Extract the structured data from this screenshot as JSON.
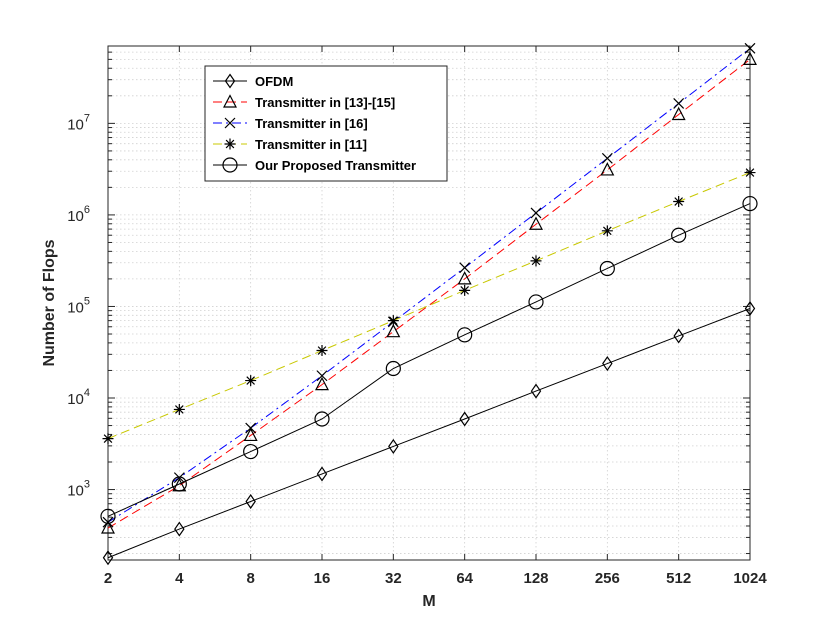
{
  "chart_data": {
    "type": "line",
    "xlabel": "M",
    "ylabel": "Number of Flops",
    "x_scale": "log2",
    "y_scale": "log10",
    "xlim": [
      2,
      1024
    ],
    "ylim": [
      170,
      70000000
    ],
    "grid": "major-and-minor",
    "legend_position": "top-left",
    "x": [
      2,
      4,
      8,
      16,
      32,
      64,
      128,
      256,
      512,
      1024
    ],
    "x_tick_labels": [
      "2",
      "4",
      "8",
      "16",
      "32",
      "64",
      "128",
      "256",
      "512",
      "1024"
    ],
    "y_ticks": [
      {
        "base": "10",
        "exp": "3",
        "value": 1000
      },
      {
        "base": "10",
        "exp": "4",
        "value": 10000
      },
      {
        "base": "10",
        "exp": "5",
        "value": 100000
      },
      {
        "base": "10",
        "exp": "6",
        "value": 1000000
      },
      {
        "base": "10",
        "exp": "7",
        "value": 10000000
      }
    ],
    "series": [
      {
        "name": "OFDM",
        "color": "#000000",
        "line_style": "solid",
        "marker": "diamond",
        "values": [
          180,
          370,
          740,
          1480,
          2960,
          5900,
          11900,
          23800,
          47600,
          95000
        ]
      },
      {
        "name": "Transmitter in [13]-[15]",
        "color": "#ff0000",
        "line_style": "dashed",
        "marker": "triangle",
        "values": [
          380,
          1100,
          3900,
          14000,
          53000,
          200000,
          790000,
          3100000,
          12500000,
          50000000
        ]
      },
      {
        "name": "Transmitter in [16]",
        "color": "#0000ff",
        "line_style": "dashdot",
        "marker": "x",
        "values": [
          440,
          1350,
          4700,
          17500,
          68000,
          265000,
          1050000,
          4150000,
          16500000,
          66000000
        ]
      },
      {
        "name": "Transmitter in [11]",
        "color": "#c8c800",
        "line_style": "dashed",
        "marker": "asterisk",
        "values": [
          3600,
          7500,
          15500,
          33000,
          70000,
          150000,
          315000,
          670000,
          1400000,
          2900000
        ]
      },
      {
        "name": "Our Proposed Transmitter",
        "color": "#000000",
        "line_style": "solid",
        "marker": "circle",
        "values": [
          510,
          1150,
          2600,
          5900,
          21000,
          49000,
          112000,
          260000,
          600000,
          1330000
        ]
      }
    ]
  }
}
